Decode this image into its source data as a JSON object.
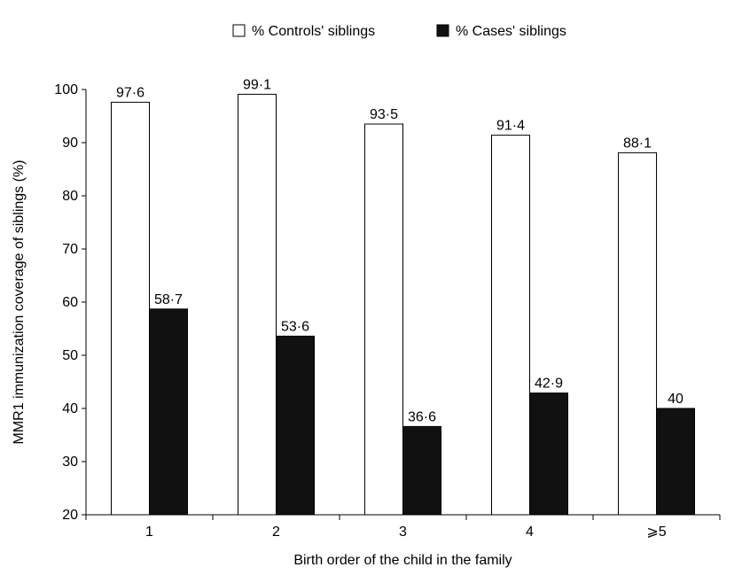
{
  "chart_data": {
    "type": "bar",
    "xlabel": "Birth order of the child in the family",
    "ylabel": "MMR1 immunization coverage of siblings (%)",
    "ylim": [
      20,
      100
    ],
    "yticks": [
      20,
      30,
      40,
      50,
      60,
      70,
      80,
      90,
      100
    ],
    "categories": [
      "1",
      "2",
      "3",
      "4",
      "⩾5"
    ],
    "series": [
      {
        "name": "% Controls' siblings",
        "color": "#ffffff",
        "values": [
          97.6,
          99.1,
          93.5,
          91.4,
          88.1
        ],
        "labels": [
          "97·6",
          "99·1",
          "93·5",
          "91·4",
          "88·1"
        ]
      },
      {
        "name": "% Cases' siblings",
        "color": "#111111",
        "values": [
          58.7,
          53.6,
          36.6,
          42.9,
          40
        ],
        "labels": [
          "58·7",
          "53·6",
          "36·6",
          "42·9",
          "40"
        ]
      }
    ],
    "legend_position": "top",
    "grid": false
  }
}
